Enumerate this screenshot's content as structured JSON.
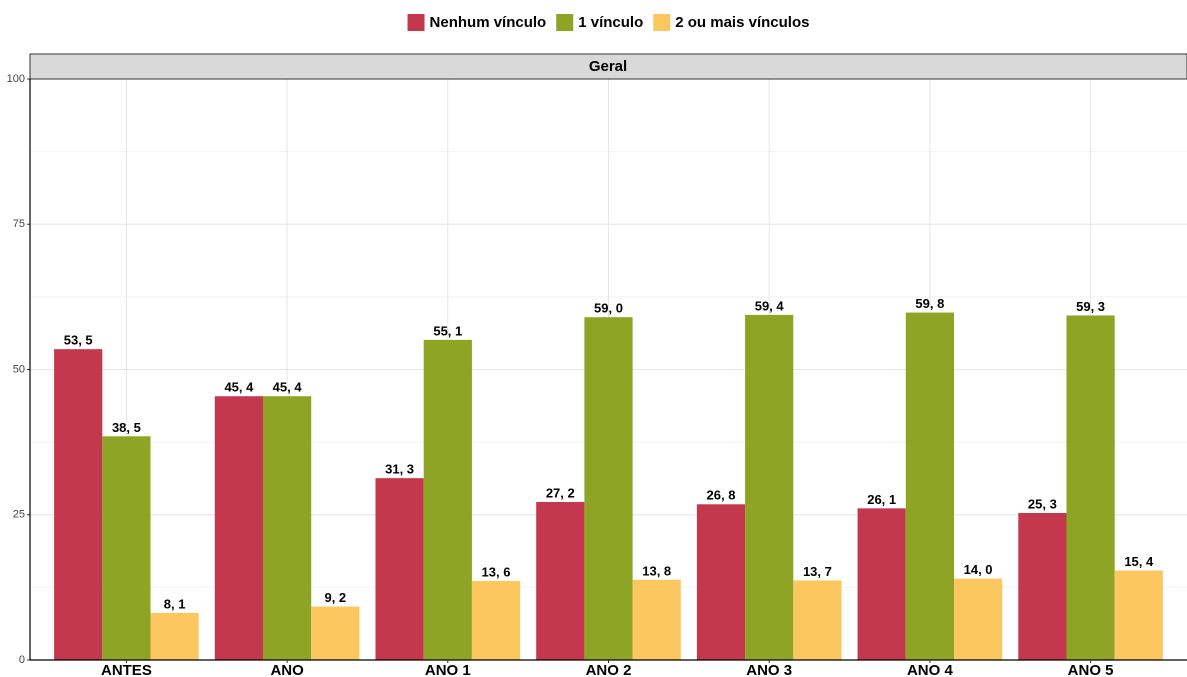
{
  "chart_data": {
    "type": "bar",
    "title": "Geral",
    "categories": [
      "ANTES",
      "ANO",
      "ANO 1",
      "ANO 2",
      "ANO 3",
      "ANO 4",
      "ANO 5"
    ],
    "series": [
      {
        "name": "Nenhum vínculo",
        "color": "#c4384e",
        "values": [
          53.5,
          45.4,
          31.3,
          27.2,
          26.8,
          26.1,
          25.3
        ],
        "value_labels": [
          "53, 5",
          "45, 4",
          "31, 3",
          "27, 2",
          "26, 8",
          "26, 1",
          "25, 3"
        ]
      },
      {
        "name": "1 vínculo",
        "color": "#8da425",
        "values": [
          38.5,
          45.4,
          55.1,
          59.0,
          59.4,
          59.8,
          59.3
        ],
        "value_labels": [
          "38, 5",
          "45, 4",
          "55, 1",
          "59, 0",
          "59, 4",
          "59, 8",
          "59, 3"
        ]
      },
      {
        "name": "2 ou mais vínculos",
        "color": "#fcc75f",
        "values": [
          8.1,
          9.2,
          13.6,
          13.8,
          13.7,
          14.0,
          15.4
        ],
        "value_labels": [
          "8, 1",
          "9, 2",
          "13, 6",
          "13, 8",
          "13, 7",
          "14, 0",
          "15, 4"
        ]
      }
    ],
    "ylim": [
      0,
      100
    ],
    "yticks": [
      0,
      25,
      50,
      75,
      100
    ],
    "grid": true,
    "legend": "top"
  }
}
